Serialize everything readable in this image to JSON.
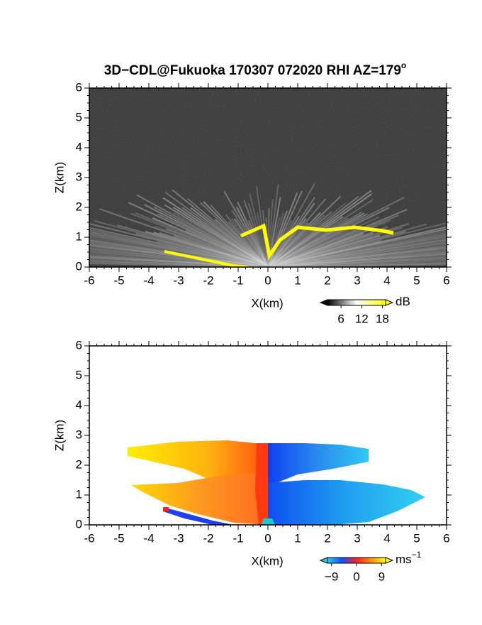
{
  "chart_data": [
    {
      "type": "heatmap",
      "title": "3D−CDL@Fukuoka 170307 072020 RHI AZ=179",
      "title_superscript": "o",
      "x_label": "X(km)",
      "y_label": "Z(km)",
      "xlim": [
        -6,
        6
      ],
      "ylim": [
        0,
        6
      ],
      "xticks": [
        -6,
        -5,
        -4,
        -3,
        -2,
        -1,
        0,
        1,
        2,
        3,
        4,
        5,
        6
      ],
      "yticks": [
        0,
        1,
        2,
        3,
        4,
        5,
        6
      ],
      "colorbar": {
        "clim": [
          0,
          21
        ],
        "ticks": [
          6,
          12,
          18
        ],
        "unit": "dB",
        "colors": [
          "#000000",
          "#ffffff",
          "#ffff00"
        ]
      }
    },
    {
      "type": "heatmap",
      "x_label": "X(km)",
      "y_label": "Z(km)",
      "xlim": [
        -6,
        6
      ],
      "ylim": [
        0,
        6
      ],
      "xticks": [
        -6,
        -5,
        -4,
        -3,
        -2,
        -1,
        0,
        1,
        2,
        3,
        4,
        5,
        6
      ],
      "yticks": [
        0,
        1,
        2,
        3,
        4,
        5,
        6
      ],
      "colorbar": {
        "clim": [
          -13,
          13
        ],
        "ticks": [
          {
            "value": -9,
            "label": "−9"
          },
          0,
          9
        ],
        "unit": "ms",
        "unit_superscript": "−1",
        "colors": [
          "#20d0f0",
          "#1050ff",
          "#ff2020",
          "#ff9010",
          "#ffff00"
        ]
      }
    }
  ]
}
